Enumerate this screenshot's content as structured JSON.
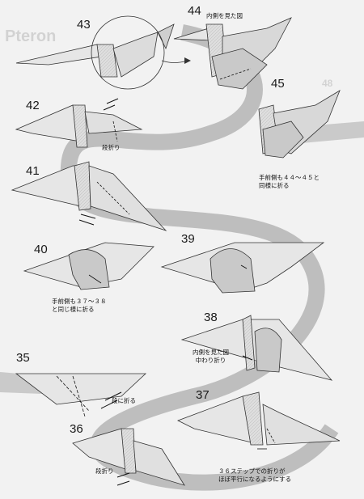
{
  "background_print": {
    "title_fragment": "Pteron",
    "page_number": "48"
  },
  "steps": {
    "s35": "35",
    "s36": "36",
    "s37": "37",
    "s38": "38",
    "s39": "39",
    "s40": "40",
    "s41": "41",
    "s42": "42",
    "s43": "43",
    "s44": "44",
    "s45": "45"
  },
  "captions": {
    "c44": "内側を見た図",
    "c42": "段折り",
    "c45_line1": "手前側も４４～４５と",
    "c45_line2": "同様に折る",
    "c40_line1": "手前側も３７～３８",
    "c40_line2": "と同じ様に折る",
    "c38_line1": "内側を見た図",
    "c38_line2": "中わり折り",
    "c35": "段に折る",
    "c36": "段折り",
    "c37_line1": "３６ステップでの折りが",
    "c37_line2": "ほぼ平行になるようにする"
  },
  "colors": {
    "paper": "#f2f2f2",
    "model": "#e6e6e6",
    "shade": "#c9c9c9",
    "loop": "#8a8a8a"
  }
}
